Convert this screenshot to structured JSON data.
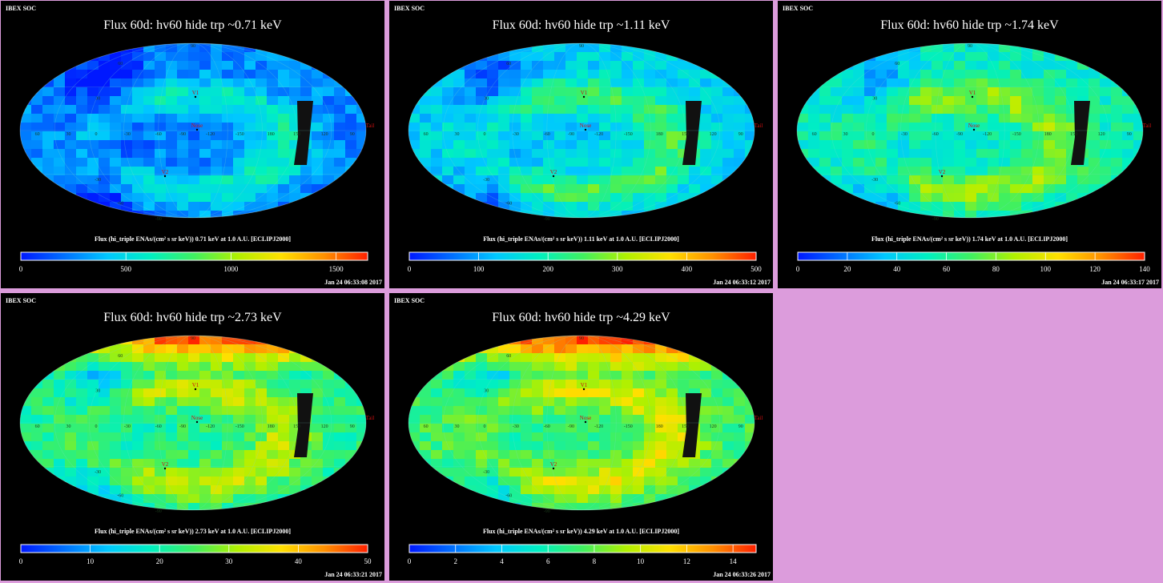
{
  "colormap_stops": [
    "#0018ff",
    "#0070ff",
    "#00c8ff",
    "#00f0c0",
    "#40f060",
    "#b0f000",
    "#ffe000",
    "#ff9000",
    "#ff2000"
  ],
  "panels": [
    {
      "soc": "IBEX SOC",
      "title": "Flux   60d: hv60 hide trp ~0.71 keV",
      "caption": "Flux (hi_triple ENAs/(cm² s sr keV))  0.71 keV at 1.0 A.U. [ECLIPJ2000]",
      "ticks": [
        "0",
        "500",
        "1000",
        "1500"
      ],
      "tick_values": [
        0,
        500,
        1000,
        1500
      ],
      "max": 1650,
      "timestamp": "Jan 24 06:33:08 2017",
      "mean_level": 0.16,
      "markers": {
        "v1": "V1",
        "v2": "V2",
        "nose": "Nose",
        "tail": "Tail"
      },
      "lon_labels": [
        "60",
        "30",
        "0",
        "-30",
        "-60",
        "-90",
        "-120",
        "-150",
        "180",
        "150",
        "120",
        "90"
      ],
      "lat_labels": [
        "60",
        "30",
        "-30",
        "-60",
        "90",
        "-90"
      ]
    },
    {
      "soc": "IBEX SOC",
      "title": "Flux   60d: hv60 hide trp ~1.11 keV",
      "caption": "Flux (hi_triple ENAs/(cm² s sr keV))  1.11 keV at 1.0 A.U. [ECLIPJ2000]",
      "ticks": [
        "0",
        "100",
        "200",
        "300",
        "400",
        "500"
      ],
      "tick_values": [
        0,
        100,
        200,
        300,
        400,
        500
      ],
      "max": 500,
      "timestamp": "Jan 24 06:33:12 2017",
      "mean_level": 0.28,
      "markers": {
        "v1": "V1",
        "v2": "V2",
        "nose": "Nose",
        "tail": "Tail"
      },
      "lon_labels": [
        "60",
        "30",
        "0",
        "-30",
        "-60",
        "-90",
        "-120",
        "-150",
        "180",
        "150",
        "120",
        "90"
      ],
      "lat_labels": [
        "60",
        "30",
        "-30",
        "-60",
        "90",
        "-90"
      ]
    },
    {
      "soc": "IBEX SOC",
      "title": "Flux   60d: hv60 hide trp ~1.74 keV",
      "caption": "Flux (hi_triple ENAs/(cm² s sr keV))  1.74 keV at 1.0 A.U. [ECLIPJ2000]",
      "ticks": [
        "0",
        "20",
        "40",
        "60",
        "80",
        "100",
        "120",
        "140"
      ],
      "tick_values": [
        0,
        20,
        40,
        60,
        80,
        100,
        120,
        140
      ],
      "max": 140,
      "timestamp": "Jan 24 06:33:17 2017",
      "mean_level": 0.38,
      "markers": {
        "v1": "V1",
        "v2": "V2",
        "nose": "Nose",
        "tail": "Tail"
      },
      "lon_labels": [
        "60",
        "30",
        "0",
        "-30",
        "-60",
        "-90",
        "-120",
        "-150",
        "180",
        "150",
        "120",
        "90"
      ],
      "lat_labels": [
        "60",
        "30",
        "-30",
        "-60",
        "90",
        "-90"
      ]
    },
    {
      "soc": "IBEX SOC",
      "title": "Flux   60d: hv60 hide trp ~2.73 keV",
      "caption": "Flux (hi_triple ENAs/(cm² s sr keV))  2.73 keV at 1.0 A.U. [ECLIPJ2000]",
      "ticks": [
        "0",
        "10",
        "20",
        "30",
        "40",
        "50"
      ],
      "tick_values": [
        0,
        10,
        20,
        30,
        40,
        50
      ],
      "max": 50,
      "timestamp": "Jan 24 06:33:21 2017",
      "mean_level": 0.44,
      "markers": {
        "v1": "V1",
        "v2": "V2",
        "nose": "Nose",
        "tail": "Tail"
      },
      "lon_labels": [
        "60",
        "30",
        "0",
        "-30",
        "-60",
        "-90",
        "-120",
        "-150",
        "180",
        "150",
        "120",
        "90"
      ],
      "lat_labels": [
        "60",
        "30",
        "-30",
        "-60",
        "90",
        "-90"
      ]
    },
    {
      "soc": "IBEX SOC",
      "title": "Flux   60d: hv60 hide trp ~4.29 keV",
      "caption": "Flux (hi_triple ENAs/(cm² s sr keV))  4.29 keV at 1.0 A.U. [ECLIPJ2000]",
      "ticks": [
        "0",
        "2",
        "4",
        "6",
        "8",
        "10",
        "12",
        "14"
      ],
      "tick_values": [
        0,
        2,
        4,
        6,
        8,
        10,
        12,
        14
      ],
      "max": 15,
      "timestamp": "Jan 24 06:33:26 2017",
      "mean_level": 0.48,
      "markers": {
        "v1": "V1",
        "v2": "V2",
        "nose": "Nose",
        "tail": "Tail"
      },
      "lon_labels": [
        "60",
        "30",
        "0",
        "-30",
        "-60",
        "-90",
        "-120",
        "-150",
        "180",
        "150",
        "120",
        "90"
      ],
      "lat_labels": [
        "60",
        "30",
        "-30",
        "-60",
        "90",
        "-90"
      ]
    }
  ]
}
